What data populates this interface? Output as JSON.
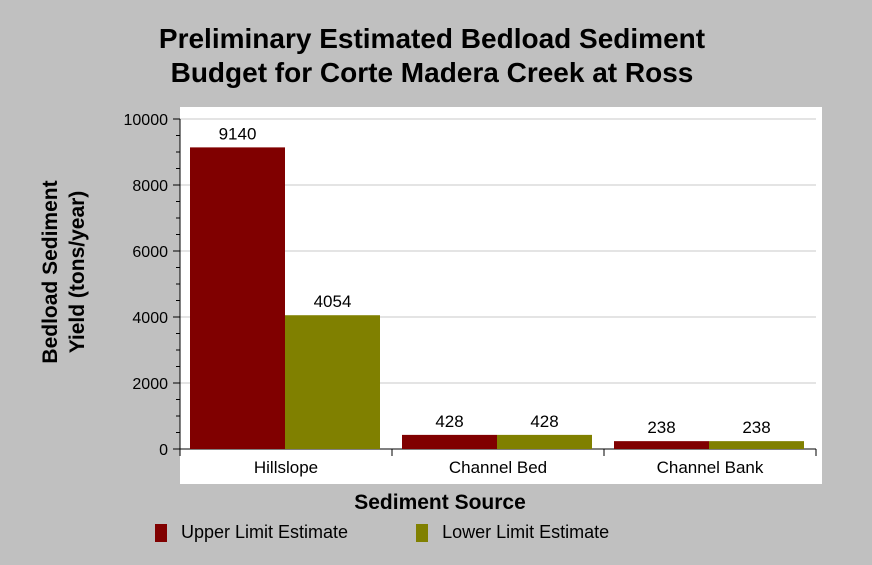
{
  "chart_data": {
    "type": "bar",
    "title": [
      "Preliminary Estimated Bedload Sediment",
      "Budget for Corte Madera Creek at Ross"
    ],
    "categories": [
      "Hillslope",
      "Channel Bed",
      "Channel Bank"
    ],
    "series": [
      {
        "name": "Upper Limit Estimate",
        "color": "#800000",
        "values": [
          9140,
          428,
          238
        ]
      },
      {
        "name": "Lower Limit Estimate",
        "color": "#808000",
        "values": [
          4054,
          428,
          238
        ]
      }
    ],
    "xlabel": "Sediment Source",
    "ylabel": [
      "Bedload Sediment",
      "Yield (tons/year)"
    ],
    "ylim": [
      0,
      10000
    ],
    "yticks": [
      0,
      2000,
      4000,
      6000,
      8000,
      10000
    ],
    "grid": true,
    "legend_position": "bottom"
  }
}
